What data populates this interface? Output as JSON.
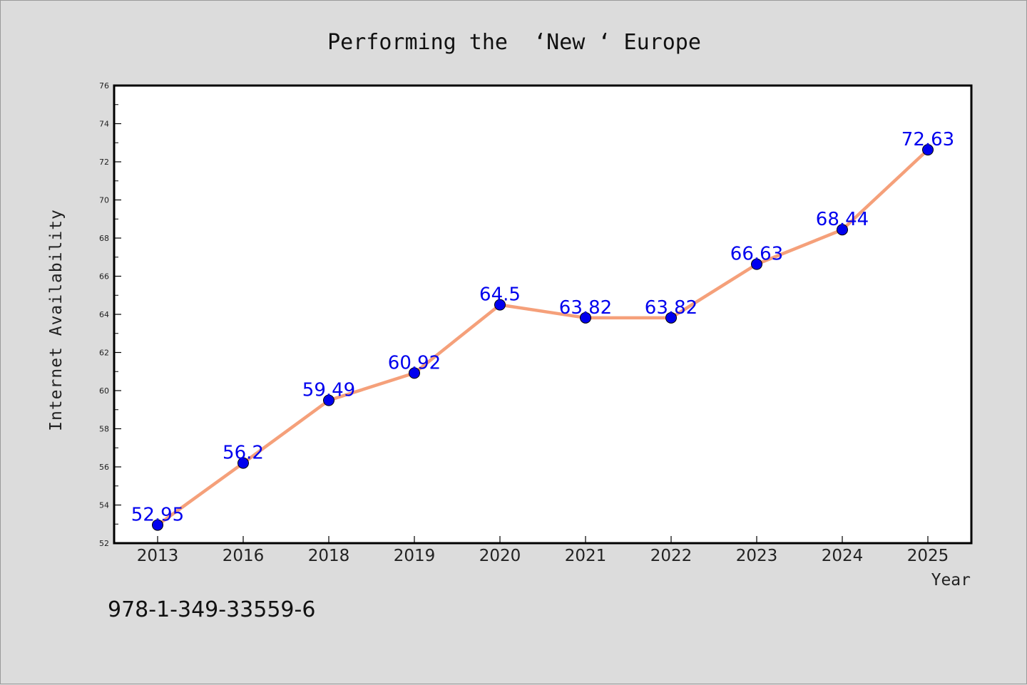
{
  "chart_data": {
    "type": "line",
    "title": "Performing the  ‘New ‘ Europe",
    "xlabel": "Year",
    "ylabel": "Internet Availability",
    "categories": [
      "2013",
      "2016",
      "2018",
      "2019",
      "2020",
      "2021",
      "2022",
      "2023",
      "2024",
      "2025"
    ],
    "series": [
      {
        "values": [
          52.95,
          56.2,
          59.49,
          60.92,
          64.5,
          63.82,
          63.82,
          66.63,
          68.44,
          72.63
        ],
        "labels": [
          "52.95",
          "56.2",
          "59.49",
          "60.92",
          "64.5",
          "63.82",
          "63.82",
          "66.63",
          "68.44",
          "72.63"
        ],
        "line_color": "#f5a07a",
        "marker_color": "#0000ee"
      }
    ],
    "ylim": [
      52,
      76
    ],
    "yticks": [
      "52",
      "54",
      "56",
      "58",
      "60",
      "62",
      "64",
      "66",
      "68",
      "70",
      "72",
      "74",
      "76"
    ],
    "grid": false,
    "legend": "none"
  },
  "footer": {
    "isbn": "978-1-349-33559-6"
  },
  "colors": {
    "background": "#dcdcdc",
    "plot_background": "#ffffff",
    "axis": "#000000"
  }
}
